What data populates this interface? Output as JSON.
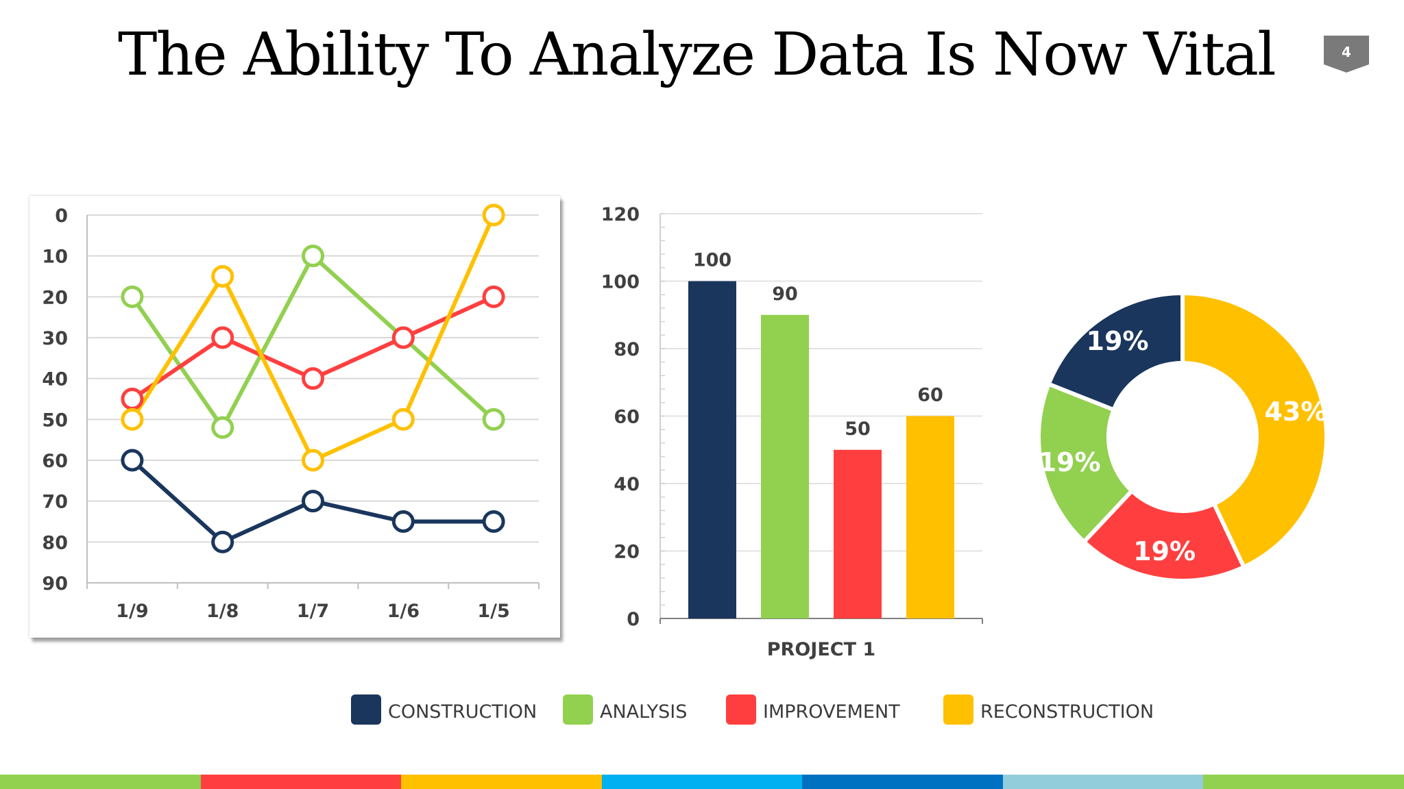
{
  "slide": {
    "title": "The Ability To Analyze Data Is Now Vital",
    "page_number": "4"
  },
  "colors": {
    "construction": "#1a365d",
    "analysis": "#92d050",
    "improvement": "#ff3f3f",
    "reconstruction": "#ffc000",
    "badge": "#7a7a7a",
    "grid": "#d9d9d9",
    "axis_text": "#404040"
  },
  "legend": [
    {
      "label": "CONSTRUCTION",
      "color": "#1a365d"
    },
    {
      "label": "ANALYSIS",
      "color": "#92d050"
    },
    {
      "label": "IMPROVEMENT",
      "color": "#ff3f3f"
    },
    {
      "label": "RECONSTRUCTION",
      "color": "#ffc000"
    }
  ],
  "bottom_stripe": [
    "#92d050",
    "#ff3f3f",
    "#ffc000",
    "#00b0f0",
    "#0070c0",
    "#92cddc",
    "#92d050"
  ],
  "chart_data": [
    {
      "type": "line",
      "categories": [
        "1/9",
        "1/8",
        "1/7",
        "1/6",
        "1/5"
      ],
      "y_ticks": [
        "0",
        "10",
        "20",
        "30",
        "40",
        "50",
        "60",
        "70",
        "80",
        "90"
      ],
      "ylim": [
        0,
        90
      ],
      "y_reversed": true,
      "grid": true,
      "series": [
        {
          "name": "CONSTRUCTION",
          "color": "#1a365d",
          "values": [
            60,
            80,
            70,
            75,
            75
          ]
        },
        {
          "name": "ANALYSIS",
          "color": "#92d050",
          "values": [
            20,
            52,
            10,
            30,
            50
          ]
        },
        {
          "name": "IMPROVEMENT",
          "color": "#ff3f3f",
          "values": [
            45,
            30,
            40,
            30,
            20
          ]
        },
        {
          "name": "RECONSTRUCTION",
          "color": "#ffc000",
          "values": [
            50,
            15,
            60,
            50,
            0
          ]
        }
      ]
    },
    {
      "type": "bar",
      "categories": [
        "PROJECT 1"
      ],
      "y_ticks": [
        "0",
        "20",
        "40",
        "60",
        "80",
        "100",
        "120"
      ],
      "ylim": [
        0,
        120
      ],
      "grid": true,
      "series": [
        {
          "name": "CONSTRUCTION",
          "color": "#1a365d",
          "values": [
            100
          ],
          "labels": [
            "100"
          ]
        },
        {
          "name": "ANALYSIS",
          "color": "#92d050",
          "values": [
            90
          ],
          "labels": [
            "90"
          ]
        },
        {
          "name": "IMPROVEMENT",
          "color": "#ff3f3f",
          "values": [
            50
          ],
          "labels": [
            "50"
          ]
        },
        {
          "name": "RECONSTRUCTION",
          "color": "#ffc000",
          "values": [
            60
          ],
          "labels": [
            "60"
          ]
        }
      ]
    },
    {
      "type": "pie",
      "donut": true,
      "slices": [
        {
          "name": "RECONSTRUCTION",
          "value": 43,
          "label": "43%",
          "color": "#ffc000"
        },
        {
          "name": "IMPROVEMENT",
          "value": 19,
          "label": "19%",
          "color": "#ff3f3f"
        },
        {
          "name": "ANALYSIS",
          "value": 19,
          "label": "19%",
          "color": "#92d050"
        },
        {
          "name": "CONSTRUCTION",
          "value": 19,
          "label": "19%",
          "color": "#1a365d"
        }
      ]
    }
  ]
}
